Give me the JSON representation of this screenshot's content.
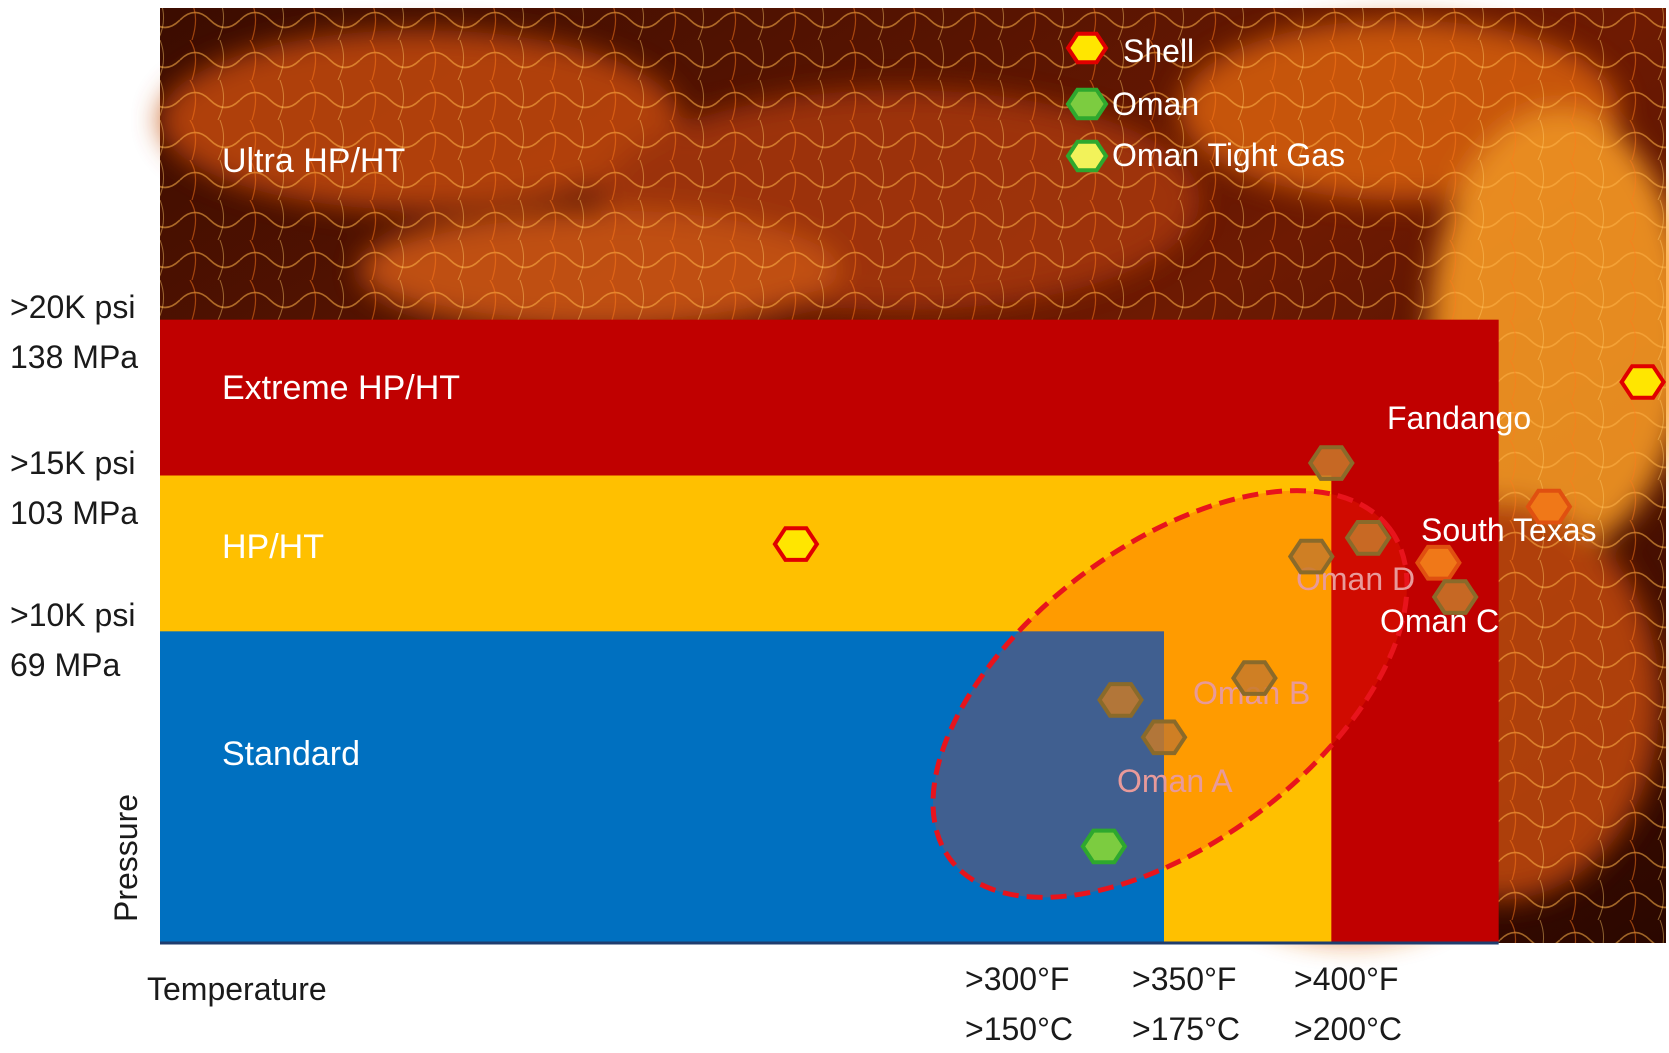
{
  "chart_data": {
    "type": "scatter",
    "title": "",
    "xlabel": "Temperature",
    "ylabel": "Pressure",
    "zones": [
      {
        "label": "Ultra HP/HT",
        "color": "#5a1200"
      },
      {
        "label": "Extreme HP/HT",
        "color": "#c00000"
      },
      {
        "label": "HP/HT",
        "color": "#ffc000"
      },
      {
        "label": "Standard",
        "color": "#0070c0"
      }
    ],
    "pressure_ticks": [
      {
        "psi": ">20K psi",
        "mpa": "138 MPa",
        "value_kpsi": 20
      },
      {
        "psi": ">15K psi",
        "mpa": "103 MPa",
        "value_kpsi": 15
      },
      {
        "psi": ">10K psi",
        "mpa": "69 MPa",
        "value_kpsi": 10
      }
    ],
    "temperature_ticks": [
      {
        "f": ">300°F",
        "c": ">150°C",
        "value_f": 300
      },
      {
        "f": ">350°F",
        "c": ">175°C",
        "value_f": 350
      },
      {
        "f": ">400°F",
        "c": ">200°C",
        "value_f": 400
      }
    ],
    "xlim": [
      0,
      450
    ],
    "ylim": [
      0,
      30
    ],
    "legend": {
      "position": "top-center",
      "entries": [
        {
          "label": "Shell",
          "fill": "#ffe600",
          "stroke": "#e00000"
        },
        {
          "label": "Oman",
          "fill": "#7ccc40",
          "stroke": "#2ea82e"
        },
        {
          "label": "Oman Tight Gas",
          "fill": "#f2f25a",
          "stroke": "#2ea82e"
        }
      ]
    },
    "series": [
      {
        "name": "Shell",
        "points": [
          {
            "x": 190,
            "y": 12.8,
            "label": ""
          },
          {
            "x": 382,
            "y": 12.2,
            "label": "Oman D"
          },
          {
            "x": 415,
            "y": 14.0,
            "label": "South Texas"
          },
          {
            "x": 443,
            "y": 18.0,
            "label": "Fandango"
          }
        ]
      },
      {
        "name": "Oman",
        "points": [
          {
            "x": 282,
            "y": 3.1,
            "label": ""
          }
        ]
      },
      {
        "name": "Oman Tight Gas",
        "points": [
          {
            "x": 287,
            "y": 7.8,
            "label": ""
          },
          {
            "x": 300,
            "y": 6.6,
            "label": "Oman A"
          },
          {
            "x": 327,
            "y": 8.5,
            "label": "Oman B"
          },
          {
            "x": 344,
            "y": 12.4,
            "label": ""
          },
          {
            "x": 350,
            "y": 15.4,
            "label": ""
          },
          {
            "x": 361,
            "y": 13.0,
            "label": ""
          },
          {
            "x": 387,
            "y": 11.1,
            "label": "Oman C"
          }
        ]
      }
    ],
    "annotations": [
      "Oman D",
      "Oman C",
      "Oman B",
      "Oman A",
      "South Texas",
      "Fandango"
    ]
  }
}
